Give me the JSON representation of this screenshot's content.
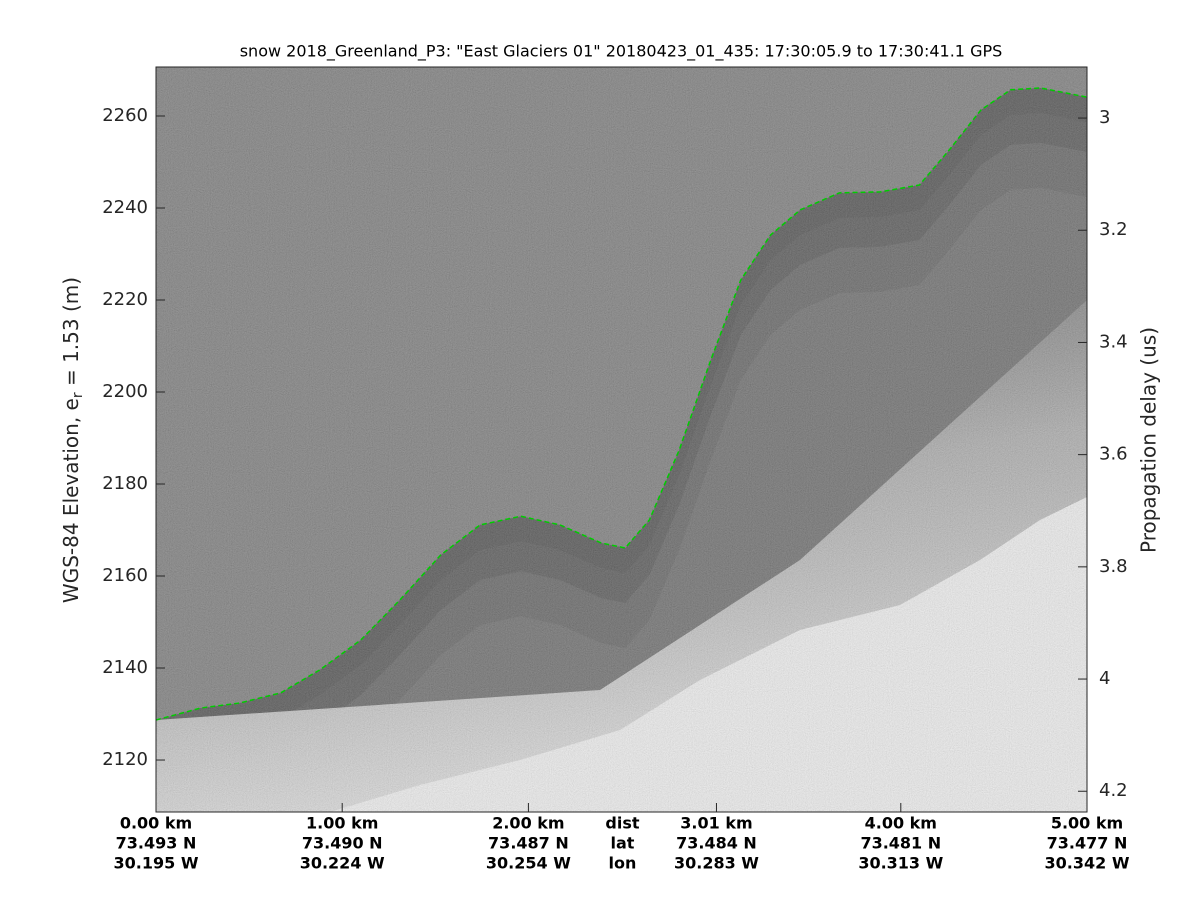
{
  "chart_data": {
    "type": "echogram",
    "title": "snow 2018_Greenland_P3: \"East Glaciers 01\"  20180423_01_435: 17:30:05.9 to 17:30:41.1 GPS",
    "ylabel": {
      "text": "WGS-84 Elevation, e",
      "subscript": "r",
      "suffix": " = 1.53 (m)"
    },
    "y2label": "Propagation delay (us)",
    "xlim": [
      0,
      5
    ],
    "xticks": [
      {
        "value": 0,
        "label": "0.00 km"
      },
      {
        "value": 1,
        "label": "1.00 km"
      },
      {
        "value": 2,
        "label": "2.00 km"
      },
      {
        "value": 3.01,
        "label": "3.01 km"
      },
      {
        "value": 4,
        "label": "4.00 km"
      },
      {
        "value": 5,
        "label": "5.00 km"
      }
    ],
    "x_tick_lat": [
      "73.493 N",
      "73.490 N",
      "73.487 N",
      "73.484 N",
      "73.481 N",
      "73.477 N"
    ],
    "x_tick_lon": [
      "30.195 W",
      "30.224 W",
      "30.254 W",
      "30.283 W",
      "30.313 W",
      "30.342 W"
    ],
    "x_row_names": [
      "dist",
      "lat",
      "lon"
    ],
    "ylim": [
      2108.7,
      2270.65
    ],
    "yticks": [
      2120,
      2140,
      2160,
      2180,
      2200,
      2220,
      2240,
      2260
    ],
    "y2lim": [
      2.909,
      4.237
    ],
    "y2_reversed": true,
    "y2ticks": [
      3,
      3.2,
      3.4,
      3.6,
      3.8,
      4,
      4.2
    ],
    "x": [
      0,
      0.24,
      0.45,
      0.67,
      0.88,
      1.1,
      1.31,
      1.53,
      1.74,
      1.96,
      2.17,
      2.39,
      2.52,
      2.65,
      2.81,
      2.98,
      3.14,
      3.3,
      3.46,
      3.67,
      3.89,
      4.1,
      4.26,
      4.43,
      4.59,
      4.75,
      5
    ],
    "series": [
      {
        "color": "#00cc00",
        "dashed": true,
        "values": [
          2128.7,
          2131.3,
          2132.4,
          2134.6,
          2139.6,
          2146.1,
          2154.8,
          2164.6,
          2171.1,
          2173,
          2171.1,
          2167.2,
          2166.1,
          2172.2,
          2187.4,
          2207,
          2224.3,
          2234.1,
          2239.6,
          2243.3,
          2243.5,
          2245,
          2252.6,
          2261.3,
          2265.7,
          2266.1,
          2264.1
        ]
      }
    ]
  }
}
